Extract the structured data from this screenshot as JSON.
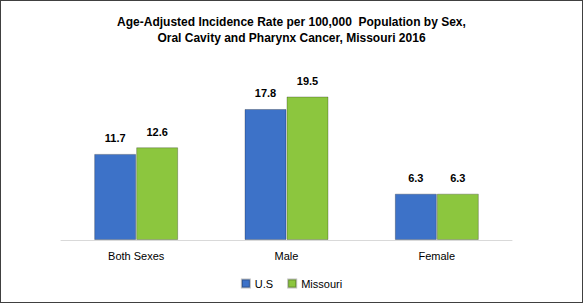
{
  "chart_data": {
    "type": "bar",
    "title": "Age-Adjusted Incidence Rate per 100,000  Population by Sex,\nOral Cavity and Pharynx Cancer, Missouri 2016",
    "categories": [
      "Both Sexes",
      "Male",
      "Female"
    ],
    "series": [
      {
        "name": "U.S",
        "color": "#3d72c8",
        "values": [
          11.7,
          17.8,
          6.3
        ]
      },
      {
        "name": "Missouri",
        "color": "#8cc63e",
        "values": [
          12.6,
          19.5,
          6.3
        ]
      }
    ],
    "ylim": [
      0,
      25
    ],
    "yticks": [
      0,
      5,
      10,
      15,
      20,
      25
    ],
    "grid": false,
    "legend": "bottom",
    "data_labels": true,
    "tick_labels": "x"
  }
}
